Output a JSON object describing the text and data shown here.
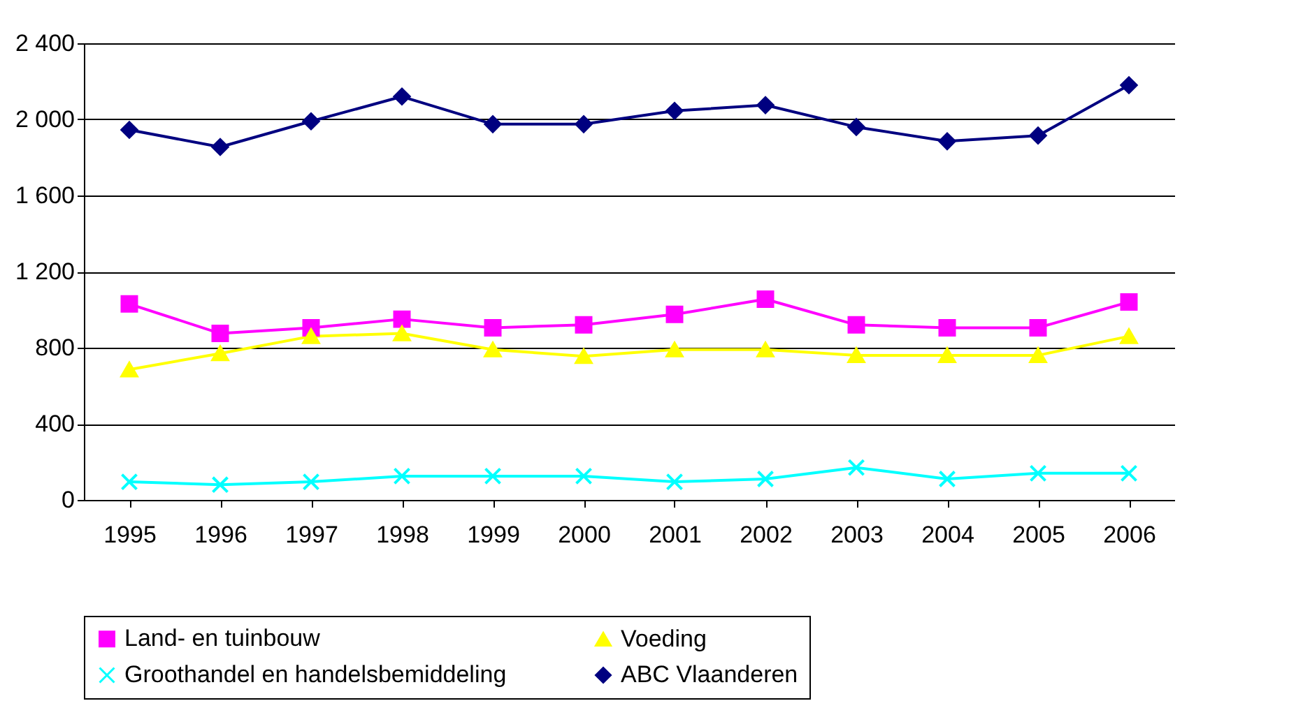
{
  "chart_data": {
    "type": "line",
    "categories": [
      "1995",
      "1996",
      "1997",
      "1998",
      "1999",
      "2000",
      "2001",
      "2002",
      "2003",
      "2004",
      "2005",
      "2006"
    ],
    "ylim": [
      0,
      2400
    ],
    "yticks": [
      {
        "value": 0,
        "label": "0"
      },
      {
        "value": 400,
        "label": "400"
      },
      {
        "value": 800,
        "label": "800"
      },
      {
        "value": 1200,
        "label": "1 200"
      },
      {
        "value": 1600,
        "label": "1 600"
      },
      {
        "value": 2000,
        "label": "2 000"
      },
      {
        "value": 2400,
        "label": "2 400"
      }
    ],
    "grid": "y",
    "legend": "bottom",
    "line_style": "solid",
    "series": [
      {
        "name": "Land- en tuinbouw",
        "color": "#ff00ff",
        "marker": "square",
        "values": [
          1030,
          875,
          905,
          950,
          905,
          920,
          975,
          1055,
          920,
          905,
          905,
          1040
        ]
      },
      {
        "name": "Voeding",
        "color": "#ffff00",
        "marker": "triangle",
        "values": [
          685,
          770,
          860,
          875,
          790,
          755,
          790,
          790,
          760,
          760,
          760,
          860
        ]
      },
      {
        "name": "Groothandel en handelsbemiddeling",
        "color": "#00ffff",
        "marker": "cross",
        "values": [
          95,
          80,
          95,
          125,
          125,
          125,
          95,
          110,
          170,
          110,
          140,
          140
        ]
      },
      {
        "name": "ABC Vlaanderen",
        "color": "#000080",
        "marker": "diamond",
        "values": [
          1945,
          1855,
          1990,
          2120,
          1975,
          1975,
          2045,
          2075,
          1960,
          1885,
          1915,
          2180
        ]
      }
    ]
  }
}
